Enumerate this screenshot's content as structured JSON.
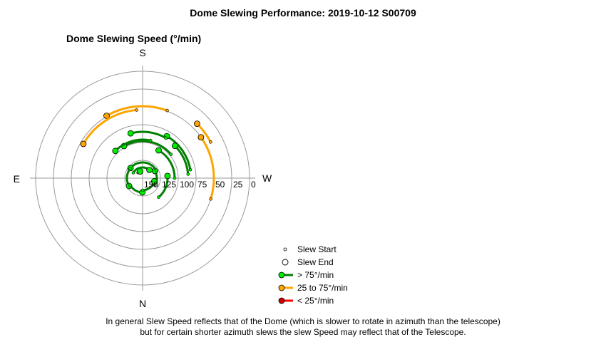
{
  "title": "Dome Slewing Performance: 2019-10-12 S00709",
  "chart_data": {
    "type": "polar",
    "title": "Dome Slewing Speed (°/min)",
    "radial_axis": {
      "direction": "inward",
      "range": [
        0,
        150
      ],
      "ticks": [
        150,
        125,
        100,
        75,
        50,
        25,
        0
      ],
      "tick_labels": [
        "150",
        "125",
        "100",
        "75",
        "50",
        "25",
        "0"
      ]
    },
    "compass": {
      "top": "S",
      "bottom": "N",
      "left": "E",
      "right": "W"
    },
    "grid": true,
    "legend_position": "bottom-right",
    "legend": [
      {
        "label": "Slew Start",
        "kind": "start"
      },
      {
        "label": "Slew End",
        "kind": "end"
      },
      {
        "label": "> 75°/min",
        "kind": "line",
        "color": "#008000",
        "marker": "#00ee00"
      },
      {
        "label": "25 to 75°/min",
        "kind": "line",
        "color": "#ffa500",
        "marker": "#ffa500"
      },
      {
        "label": "< 25°/min",
        "kind": "line",
        "color": "#ff0000",
        "marker": "#cc0000"
      }
    ],
    "slews": [
      {
        "speed": 50,
        "start_az": 73,
        "end_az": 125,
        "class": "mid"
      },
      {
        "speed": 42,
        "start_az": 118,
        "end_az": 135,
        "class": "mid"
      },
      {
        "speed": 49,
        "start_az": 160,
        "end_az": 210,
        "class": "mid"
      },
      {
        "speed": 54,
        "start_az": 185,
        "end_az": 240,
        "class": "mid"
      },
      {
        "speed": 82,
        "start_az": 100,
        "end_az": 150,
        "class": "fast"
      },
      {
        "speed": 86,
        "start_az": 95,
        "end_az": 135,
        "class": "fast"
      },
      {
        "speed": 85,
        "start_az": 150,
        "end_az": 195,
        "class": "fast"
      },
      {
        "speed": 98,
        "start_az": 130,
        "end_az": 210,
        "class": "fast"
      },
      {
        "speed": 105,
        "start_az": 90,
        "end_az": 150,
        "class": "fast"
      },
      {
        "speed": 96,
        "start_az": 168,
        "end_az": 225,
        "class": "fast"
      },
      {
        "speed": 115,
        "start_az": 40,
        "end_az": 95,
        "class": "fast"
      },
      {
        "speed": 130,
        "start_az": 60,
        "end_az": 120,
        "class": "fast"
      },
      {
        "speed": 128,
        "start_az": 120,
        "end_az": 230,
        "class": "fast"
      },
      {
        "speed": 128,
        "start_az": 232,
        "end_az": 300,
        "class": "fast"
      },
      {
        "speed": 130,
        "start_az": 300,
        "end_az": 359,
        "class": "fast"
      },
      {
        "speed": 133,
        "start_az": 0,
        "end_az": 75,
        "class": "fast"
      },
      {
        "speed": 140,
        "start_az": 220,
        "end_az": 200,
        "class": "fast"
      },
      {
        "speed": 135,
        "start_az": 240,
        "end_az": 140,
        "class": "fast"
      }
    ]
  },
  "footnote": {
    "line1": "In general Slew Speed reflects that of the Dome (which is slower to rotate in azimuth than the telescope)",
    "line2": "but for certain shorter azimuth slews the slew Speed may reflect that of the Telescope."
  }
}
